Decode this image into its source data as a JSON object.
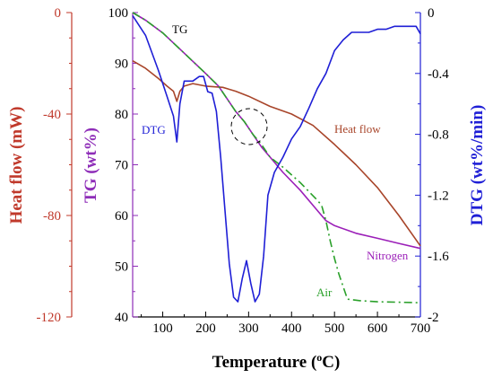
{
  "chart_data": {
    "type": "line",
    "xlabel_main": "Temperature (",
    "xlabel_sup": "o",
    "xlabel_tail": "C)",
    "x_axis": {
      "ticks": [
        100,
        200,
        300,
        400,
        500,
        600,
        700
      ],
      "range": [
        30,
        700
      ]
    },
    "y_axes": {
      "heat_flow": {
        "label": "Heat flow (mW)",
        "ticks": [
          0,
          -40,
          -80,
          -120
        ],
        "range": [
          -120,
          0
        ],
        "color": "#c0392b"
      },
      "tg": {
        "label": "TG (wt%)",
        "ticks": [
          100,
          90,
          80,
          70,
          60,
          50,
          40
        ],
        "range": [
          40,
          100
        ],
        "color": "#8e2db8"
      },
      "dtg": {
        "label": "DTG (wt%/min)",
        "ticks": [
          "0",
          "-0.4",
          "-0.8",
          "-1.2",
          "-1.6",
          "-2"
        ],
        "tick_values": [
          0,
          -0.4,
          -0.8,
          -1.2,
          -1.6,
          -2
        ],
        "range": [
          -2,
          0
        ],
        "color": "#1f1fd6"
      }
    },
    "series": [
      {
        "name": "Heat flow",
        "axis": "heat_flow",
        "color": "#a8452a",
        "x": [
          30,
          60,
          90,
          110,
          125,
          133,
          140,
          150,
          170,
          200,
          240,
          270,
          300,
          350,
          400,
          450,
          500,
          550,
          600,
          650,
          700
        ],
        "y": [
          -19,
          -22,
          -26,
          -29,
          -31,
          -35,
          -31,
          -29,
          -28,
          -29,
          -29.5,
          -31,
          -33,
          -37,
          -40,
          -44.5,
          -52,
          -60,
          -69,
          -80,
          -92
        ]
      },
      {
        "name": "Nitrogen",
        "axis": "tg",
        "color": "#9b1fb8",
        "x": [
          30,
          60,
          100,
          150,
          200,
          230,
          250,
          270,
          290,
          310,
          330,
          350,
          380,
          420,
          460,
          480,
          500,
          550,
          600,
          650,
          700
        ],
        "y": [
          100,
          98.5,
          96,
          92,
          88,
          85.5,
          83,
          80.5,
          78.5,
          76,
          73.5,
          71.5,
          68.5,
          65,
          61,
          59,
          58,
          56.5,
          55.5,
          54.5,
          53.5
        ]
      },
      {
        "name": "Air",
        "axis": "tg",
        "color": "#2aa02a",
        "dashed": true,
        "x": [
          30,
          60,
          100,
          150,
          200,
          230,
          250,
          270,
          290,
          310,
          330,
          350,
          380,
          420,
          460,
          470,
          480,
          490,
          500,
          510,
          520,
          530,
          560,
          600,
          650,
          700
        ],
        "y": [
          100,
          98.5,
          96,
          92,
          88,
          85.5,
          83,
          80.5,
          78.5,
          76,
          74,
          71.5,
          69.5,
          66.5,
          63,
          62,
          59,
          55,
          51.5,
          48.5,
          46,
          43.5,
          43.2,
          43,
          42.9,
          42.8
        ]
      },
      {
        "name": "DTG",
        "axis": "dtg",
        "color": "#1f1fd6",
        "x": [
          30,
          60,
          90,
          110,
          125,
          133,
          140,
          150,
          170,
          185,
          195,
          205,
          215,
          225,
          235,
          245,
          255,
          265,
          275,
          285,
          295,
          305,
          315,
          325,
          335,
          345,
          360,
          380,
          400,
          420,
          440,
          460,
          480,
          500,
          520,
          540,
          560,
          580,
          600,
          620,
          640,
          660,
          680,
          690,
          700
        ],
        "y": [
          -0.02,
          -0.15,
          -0.38,
          -0.55,
          -0.68,
          -0.85,
          -0.6,
          -0.45,
          -0.45,
          -0.42,
          -0.42,
          -0.52,
          -0.53,
          -0.65,
          -0.95,
          -1.3,
          -1.65,
          -1.87,
          -1.9,
          -1.75,
          -1.63,
          -1.78,
          -1.9,
          -1.85,
          -1.6,
          -1.2,
          -1.05,
          -0.95,
          -0.83,
          -0.75,
          -0.63,
          -0.5,
          -0.4,
          -0.25,
          -0.18,
          -0.13,
          -0.13,
          -0.13,
          -0.11,
          -0.11,
          -0.09,
          -0.09,
          -0.09,
          -0.09,
          -0.14
        ]
      }
    ],
    "annotations": {
      "tg": "TG",
      "dtg": "DTG",
      "heat_flow": "Heat flow",
      "nitrogen": "Nitrogen",
      "air": "Air"
    },
    "grid": false,
    "legend": "none"
  }
}
